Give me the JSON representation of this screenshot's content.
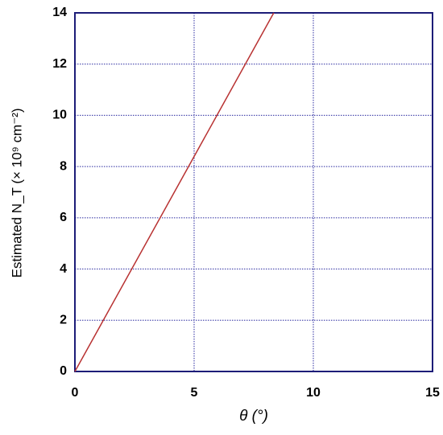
{
  "chart_data": {
    "type": "line",
    "x_label": "θ (°)",
    "y_label": "Estimated N_T (× 10⁹ cm⁻²)",
    "x": [
      0,
      8.34
    ],
    "series": [
      {
        "color": "#b83232",
        "values": [
          0,
          14
        ]
      }
    ],
    "xlim": [
      0,
      15
    ],
    "xticks": [
      0,
      5,
      10,
      15
    ],
    "ylim": [
      0,
      14
    ],
    "yticks": [
      0,
      2,
      4,
      6,
      8,
      10,
      12,
      14
    ],
    "grid": true
  }
}
